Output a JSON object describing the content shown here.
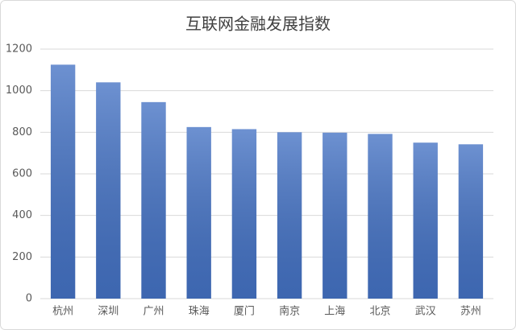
{
  "chart_data": {
    "type": "bar",
    "title": "互联网金融发展指数",
    "categories": [
      "杭州",
      "深圳",
      "广州",
      "珠海",
      "厦门",
      "南京",
      "上海",
      "北京",
      "武汉",
      "苏州"
    ],
    "values": [
      1125,
      1040,
      945,
      825,
      815,
      800,
      798,
      792,
      750,
      742
    ],
    "color": "#4472c4",
    "ylim": [
      0,
      1200
    ],
    "yticks": [
      0,
      200,
      400,
      600,
      800,
      1000,
      1200
    ],
    "grid": true
  }
}
